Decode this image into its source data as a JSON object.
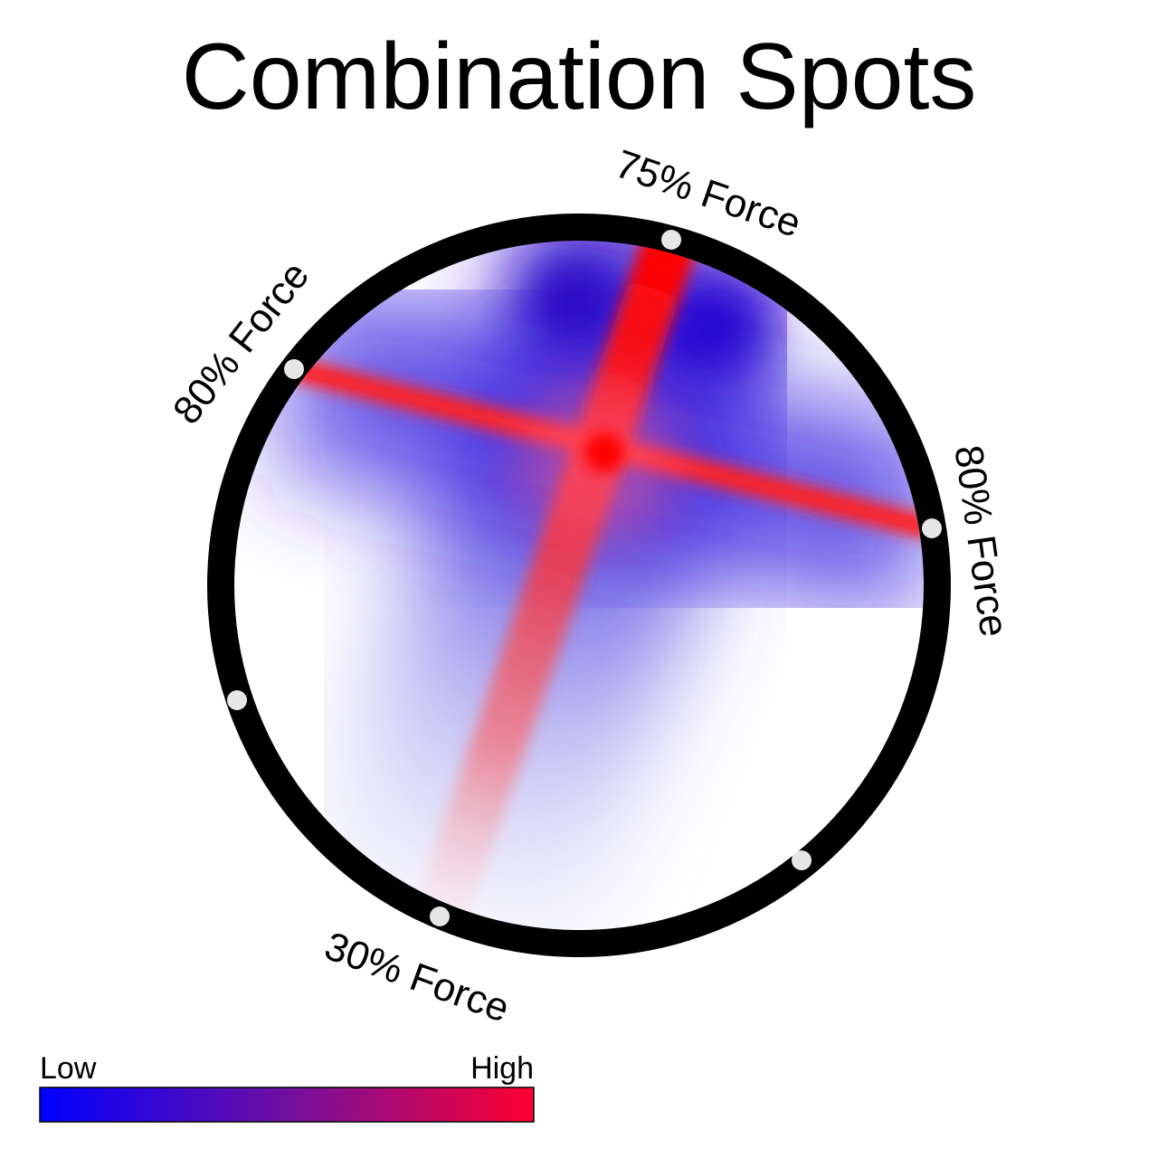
{
  "title": "Combination Spots",
  "labels": [
    "75% Force",
    "80% Force",
    "80% Force",
    "30% Force"
  ],
  "legend": {
    "low": "Low",
    "high": "High"
  }
}
